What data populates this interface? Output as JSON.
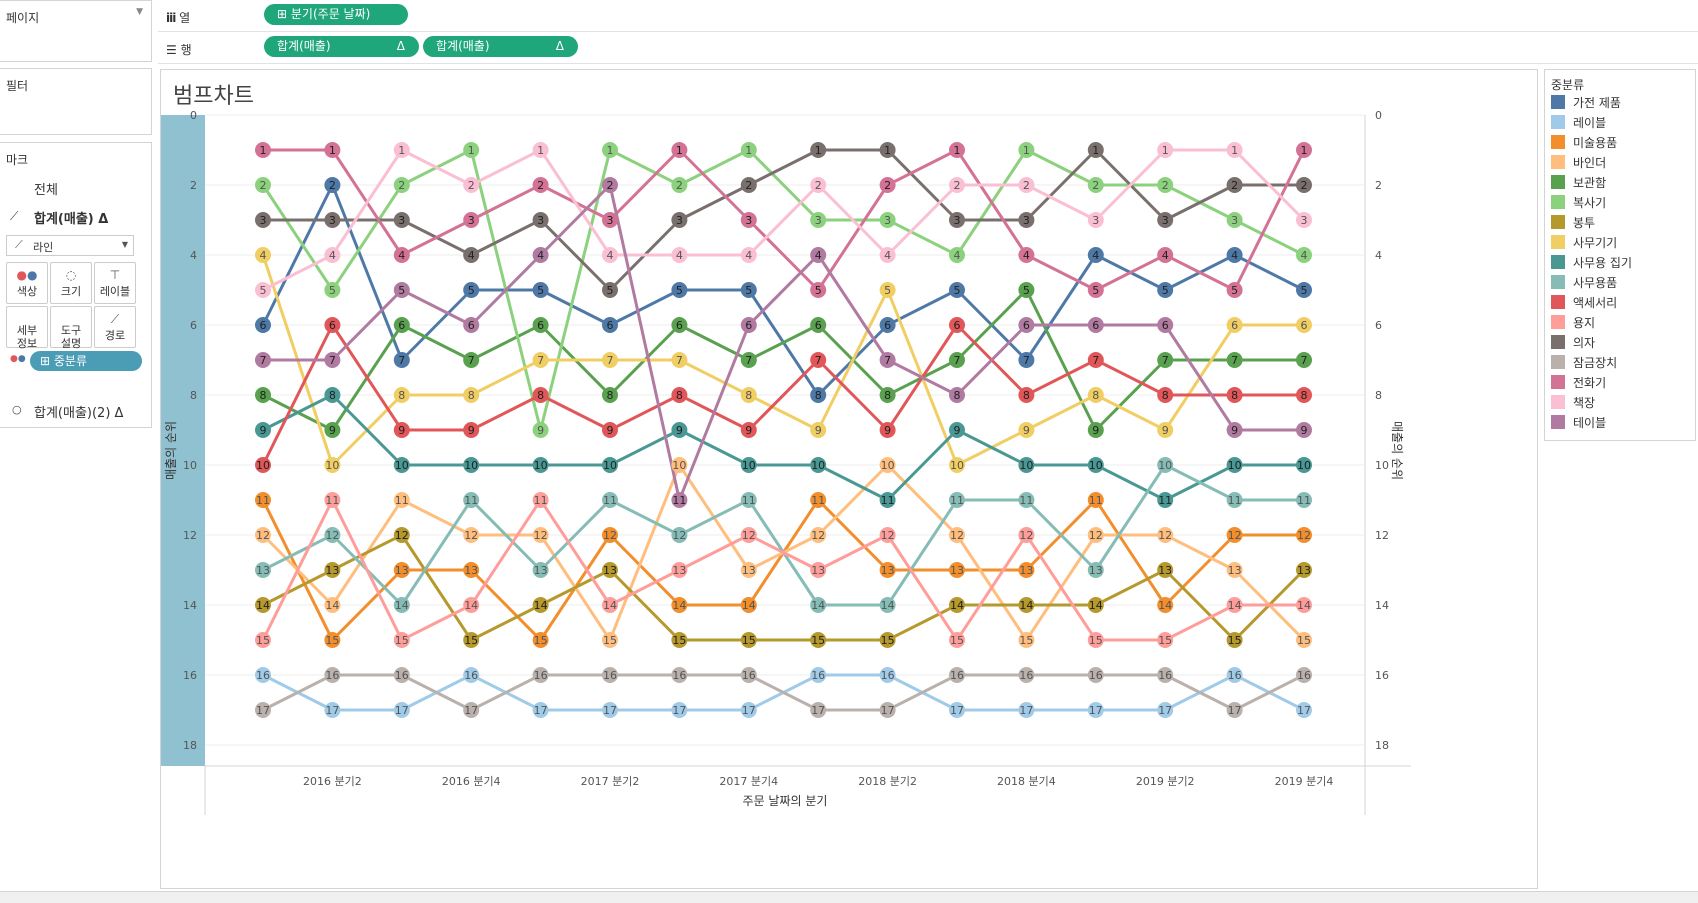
{
  "shelves": {
    "pages_label": "페이지",
    "columns_label": "열",
    "rows_label": "행",
    "column_pill": "분기(주문 날짜)",
    "row_pills": [
      "합계(매출)",
      "합계(매출)"
    ],
    "delta": "Δ"
  },
  "filters_label": "필터",
  "marks": {
    "label": "마크",
    "all_label": "전체",
    "measure1": "합계(매출)",
    "measure2": "합계(매출)(2)",
    "delta": "Δ",
    "mark_type": "라인",
    "buttons": [
      "색상",
      "크기",
      "레이블",
      "세부\n정보",
      "도구\n설명",
      "경로"
    ],
    "color_pill": "중분류"
  },
  "view": {
    "title": "범프차트"
  },
  "legend": {
    "title": "중분류",
    "items": [
      {
        "label": "가전 제품",
        "color": "#4e79a7"
      },
      {
        "label": "레이블",
        "color": "#a0cbe8"
      },
      {
        "label": "미술용품",
        "color": "#f28e2b"
      },
      {
        "label": "바인더",
        "color": "#ffbe7d"
      },
      {
        "label": "보관함",
        "color": "#59a14f"
      },
      {
        "label": "복사기",
        "color": "#8cd17d"
      },
      {
        "label": "봉투",
        "color": "#b6992d"
      },
      {
        "label": "사무기기",
        "color": "#f1ce63"
      },
      {
        "label": "사무용 집기",
        "color": "#499894"
      },
      {
        "label": "사무용품",
        "color": "#86bcb6"
      },
      {
        "label": "액세서리",
        "color": "#e15759"
      },
      {
        "label": "용지",
        "color": "#ff9d9a"
      },
      {
        "label": "의자",
        "color": "#79706e"
      },
      {
        "label": "잠금장치",
        "color": "#bab0ac"
      },
      {
        "label": "전화기",
        "color": "#d37295"
      },
      {
        "label": "책장",
        "color": "#fabfd2"
      },
      {
        "label": "테이블",
        "color": "#b07aa1"
      }
    ]
  },
  "chart_data": {
    "type": "line",
    "title": "범프차트",
    "xlabel": "주문 날짜의 분기",
    "ylabel": "매출의 순위",
    "ylabel_right": "매출의 순위",
    "y_ticks": [
      0,
      2,
      4,
      6,
      8,
      10,
      12,
      14,
      16,
      18
    ],
    "ylim": [
      0,
      18.6
    ],
    "x_tick_labels": [
      "2016 분기2",
      "2016 분기4",
      "2017 분기2",
      "2017 분기4",
      "2018 분기2",
      "2018 분기4",
      "2019 분기2",
      "2019 분기4"
    ],
    "x": [
      "2016 분기1",
      "2016 분기2",
      "2016 분기3",
      "2016 분기4",
      "2017 분기1",
      "2017 분기2",
      "2017 분기3",
      "2017 분기4",
      "2018 분기1",
      "2018 분기2",
      "2018 분기3",
      "2018 분기4",
      "2019 분기1",
      "2019 분기2",
      "2019 분기3",
      "2019 분기4"
    ],
    "series": [
      {
        "name": "가전 제품",
        "values": [
          6,
          2,
          7,
          5,
          5,
          6,
          5,
          5,
          8,
          6,
          5,
          7,
          4,
          5,
          4,
          5
        ]
      },
      {
        "name": "레이블",
        "values": [
          16,
          17,
          17,
          16,
          17,
          17,
          17,
          17,
          16,
          16,
          17,
          17,
          17,
          17,
          16,
          17
        ]
      },
      {
        "name": "미술용품",
        "values": [
          11,
          15,
          13,
          13,
          15,
          12,
          14,
          14,
          11,
          13,
          13,
          13,
          11,
          14,
          12,
          12
        ]
      },
      {
        "name": "바인더",
        "values": [
          12,
          14,
          11,
          12,
          12,
          15,
          10,
          13,
          12,
          10,
          12,
          15,
          12,
          12,
          13,
          15
        ]
      },
      {
        "name": "보관함",
        "values": [
          8,
          9,
          6,
          7,
          6,
          8,
          6,
          7,
          6,
          8,
          7,
          5,
          9,
          7,
          7,
          7
        ]
      },
      {
        "name": "복사기",
        "values": [
          2,
          5,
          2,
          1,
          9,
          1,
          2,
          1,
          3,
          3,
          4,
          1,
          2,
          2,
          3,
          4
        ]
      },
      {
        "name": "봉투",
        "values": [
          14,
          13,
          12,
          15,
          14,
          13,
          15,
          15,
          15,
          15,
          14,
          14,
          14,
          13,
          15,
          13
        ]
      },
      {
        "name": "사무기기",
        "values": [
          4,
          10,
          8,
          8,
          7,
          7,
          7,
          8,
          9,
          5,
          10,
          9,
          8,
          9,
          6,
          6
        ]
      },
      {
        "name": "사무용 집기",
        "values": [
          9,
          8,
          10,
          10,
          10,
          10,
          9,
          10,
          10,
          11,
          9,
          10,
          10,
          11,
          10,
          10
        ]
      },
      {
        "name": "사무용품",
        "values": [
          13,
          12,
          14,
          11,
          13,
          11,
          12,
          11,
          14,
          14,
          11,
          11,
          13,
          10,
          11,
          11
        ]
      },
      {
        "name": "액세서리",
        "values": [
          10,
          6,
          9,
          9,
          8,
          9,
          8,
          9,
          7,
          9,
          6,
          8,
          7,
          8,
          8,
          8
        ]
      },
      {
        "name": "용지",
        "values": [
          15,
          11,
          15,
          14,
          11,
          14,
          13,
          12,
          13,
          12,
          15,
          12,
          15,
          15,
          14,
          14
        ]
      },
      {
        "name": "의자",
        "values": [
          3,
          3,
          3,
          4,
          3,
          5,
          3,
          2,
          1,
          1,
          3,
          3,
          1,
          3,
          2,
          2
        ]
      },
      {
        "name": "잠금장치",
        "values": [
          17,
          16,
          16,
          17,
          16,
          16,
          16,
          16,
          17,
          17,
          16,
          16,
          16,
          16,
          17,
          16
        ]
      },
      {
        "name": "전화기",
        "values": [
          1,
          1,
          4,
          3,
          2,
          3,
          1,
          3,
          5,
          2,
          1,
          4,
          5,
          4,
          5,
          1
        ]
      },
      {
        "name": "책장",
        "values": [
          5,
          4,
          1,
          2,
          1,
          4,
          4,
          4,
          2,
          4,
          2,
          2,
          3,
          1,
          1,
          3
        ]
      },
      {
        "name": "테이블",
        "values": [
          7,
          7,
          5,
          6,
          4,
          2,
          11,
          6,
          4,
          7,
          8,
          6,
          6,
          6,
          9,
          9
        ]
      }
    ]
  }
}
